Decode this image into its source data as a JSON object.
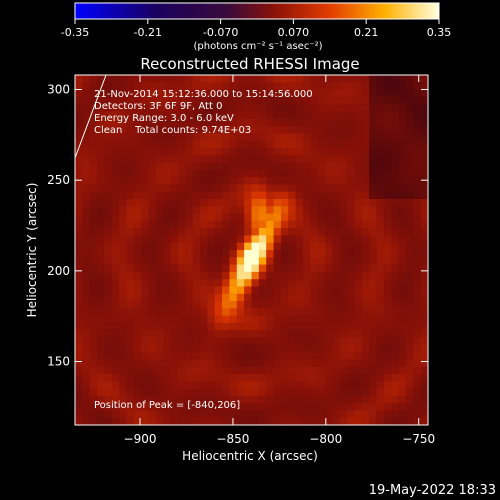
{
  "chart_data": {
    "type": "heatmap",
    "title": "Reconstructed RHESSI Image",
    "xlabel": "Heliocentric X (arcsec)",
    "ylabel": "Heliocentric Y (arcsec)",
    "xlim": [
      -935,
      -745
    ],
    "ylim": [
      115,
      308
    ],
    "x_ticks": [
      -900,
      -850,
      -800,
      -750
    ],
    "y_ticks": [
      150,
      200,
      250,
      300
    ],
    "colorbar": {
      "ticks": [
        -0.35,
        -0.21,
        -0.07,
        0.07,
        0.21,
        0.35
      ],
      "tick_labels": [
        "-0.35",
        "-0.21",
        "-0.070",
        "0.070",
        "0.21",
        "0.35"
      ],
      "range": [
        -0.35,
        0.35
      ],
      "unit_label": "(photons cm⁻² s⁻¹ asec⁻²)"
    },
    "annotations": [
      "21-Nov-2014 15:12:36.000 to 15:14:56.000",
      "Detectors: 3F 6F 9F, Att 0",
      "Energy Range: 3.0 - 6.0 keV",
      "Clean    Total counts: 9.74E+03"
    ],
    "peak_label": "Position of Peak = [-840,206]",
    "peak": [
      -840,
      206
    ],
    "grid": false
  },
  "footer": {
    "timestamp": "19-May-2022 18:33"
  }
}
